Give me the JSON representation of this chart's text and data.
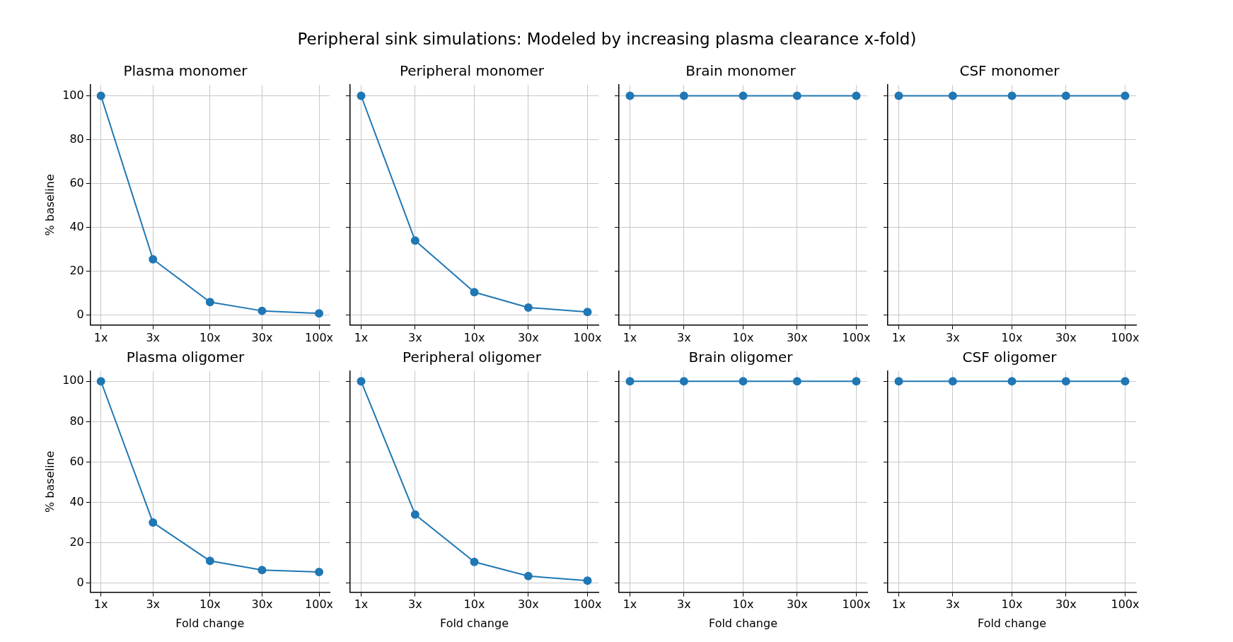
{
  "chart_data": [
    {
      "type": "other",
      "title": "Peripheral sink simulations: Modeled by increasing plasma clearance x-fold)"
    },
    {
      "type": "line",
      "title": "Plasma monomer",
      "ylabel": "% baseline",
      "x": [
        1,
        3,
        10,
        30,
        100
      ],
      "series": [
        {
          "color": "#1f77b4",
          "values": [
            100,
            25.5,
            6,
            2,
            0.8
          ]
        }
      ],
      "log": "x",
      "xlim": [
        0.8,
        125
      ],
      "ylim": [
        -4.5,
        105
      ],
      "xticks": [
        {
          "value": 1,
          "label": "1x"
        },
        {
          "value": 3,
          "label": "3x"
        },
        {
          "value": 10,
          "label": "10x"
        },
        {
          "value": 30,
          "label": "30x"
        },
        {
          "value": 100,
          "label": "100x"
        }
      ],
      "yticks": [
        0,
        20,
        40,
        60,
        80,
        100
      ],
      "grid": true,
      "marker": "circle",
      "line_style": "solid"
    },
    {
      "type": "line",
      "title": "Peripheral monomer",
      "x": [
        1,
        3,
        10,
        30,
        100
      ],
      "series": [
        {
          "color": "#1f77b4",
          "values": [
            100,
            34,
            10.5,
            3.5,
            1.5
          ]
        }
      ],
      "log": "x",
      "xlim": [
        0.8,
        125
      ],
      "ylim": [
        -4.5,
        105
      ],
      "xticks": [
        {
          "value": 1,
          "label": "1x"
        },
        {
          "value": 3,
          "label": "3x"
        },
        {
          "value": 10,
          "label": "10x"
        },
        {
          "value": 30,
          "label": "30x"
        },
        {
          "value": 100,
          "label": "100x"
        }
      ],
      "yticks": [
        0,
        20,
        40,
        60,
        80,
        100
      ],
      "tick_labels": "x",
      "grid": true,
      "marker": "circle",
      "line_style": "solid"
    },
    {
      "type": "line",
      "title": "Brain monomer",
      "x": [
        1,
        3,
        10,
        30,
        100
      ],
      "series": [
        {
          "color": "#1f77b4",
          "values": [
            100,
            100,
            100,
            100,
            100
          ]
        }
      ],
      "log": "x",
      "xlim": [
        0.8,
        125
      ],
      "ylim": [
        -4.5,
        105
      ],
      "xticks": [
        {
          "value": 1,
          "label": "1x"
        },
        {
          "value": 3,
          "label": "3x"
        },
        {
          "value": 10,
          "label": "10x"
        },
        {
          "value": 30,
          "label": "30x"
        },
        {
          "value": 100,
          "label": "100x"
        }
      ],
      "yticks": [
        0,
        20,
        40,
        60,
        80,
        100
      ],
      "tick_labels": "x",
      "grid": true,
      "marker": "circle",
      "line_style": "solid"
    },
    {
      "type": "line",
      "title": "CSF monomer",
      "x": [
        1,
        3,
        10,
        30,
        100
      ],
      "series": [
        {
          "color": "#1f77b4",
          "values": [
            100,
            100,
            100,
            100,
            100
          ]
        }
      ],
      "log": "x",
      "xlim": [
        0.8,
        125
      ],
      "ylim": [
        -4.5,
        105
      ],
      "xticks": [
        {
          "value": 1,
          "label": "1x"
        },
        {
          "value": 3,
          "label": "3x"
        },
        {
          "value": 10,
          "label": "10x"
        },
        {
          "value": 30,
          "label": "30x"
        },
        {
          "value": 100,
          "label": "100x"
        }
      ],
      "yticks": [
        0,
        20,
        40,
        60,
        80,
        100
      ],
      "tick_labels": "x",
      "grid": true,
      "marker": "circle",
      "line_style": "solid"
    },
    {
      "type": "line",
      "title": "Plasma oligomer",
      "ylabel": "% baseline",
      "xlabel": "Fold change",
      "x": [
        1,
        3,
        10,
        30,
        100
      ],
      "series": [
        {
          "color": "#1f77b4",
          "values": [
            100,
            30,
            11,
            6.5,
            5.5
          ]
        }
      ],
      "log": "x",
      "xlim": [
        0.8,
        125
      ],
      "ylim": [
        -4.5,
        105
      ],
      "xticks": [
        {
          "value": 1,
          "label": "1x"
        },
        {
          "value": 3,
          "label": "3x"
        },
        {
          "value": 10,
          "label": "10x"
        },
        {
          "value": 30,
          "label": "30x"
        },
        {
          "value": 100,
          "label": "100x"
        }
      ],
      "yticks": [
        0,
        20,
        40,
        60,
        80,
        100
      ],
      "grid": true,
      "marker": "circle",
      "line_style": "solid"
    },
    {
      "type": "line",
      "title": "Peripheral oligomer",
      "xlabel": "Fold change",
      "x": [
        1,
        3,
        10,
        30,
        100
      ],
      "series": [
        {
          "color": "#1f77b4",
          "values": [
            100,
            34,
            10.5,
            3.5,
            1.2
          ]
        }
      ],
      "log": "x",
      "xlim": [
        0.8,
        125
      ],
      "ylim": [
        -4.5,
        105
      ],
      "xticks": [
        {
          "value": 1,
          "label": "1x"
        },
        {
          "value": 3,
          "label": "3x"
        },
        {
          "value": 10,
          "label": "10x"
        },
        {
          "value": 30,
          "label": "30x"
        },
        {
          "value": 100,
          "label": "100x"
        }
      ],
      "yticks": [
        0,
        20,
        40,
        60,
        80,
        100
      ],
      "tick_labels": "x",
      "grid": true,
      "marker": "circle",
      "line_style": "solid"
    },
    {
      "type": "line",
      "title": "Brain oligomer",
      "xlabel": "Fold change",
      "x": [
        1,
        3,
        10,
        30,
        100
      ],
      "series": [
        {
          "color": "#1f77b4",
          "values": [
            100,
            100,
            100,
            100,
            100
          ]
        }
      ],
      "log": "x",
      "xlim": [
        0.8,
        125
      ],
      "ylim": [
        -4.5,
        105
      ],
      "xticks": [
        {
          "value": 1,
          "label": "1x"
        },
        {
          "value": 3,
          "label": "3x"
        },
        {
          "value": 10,
          "label": "10x"
        },
        {
          "value": 30,
          "label": "30x"
        },
        {
          "value": 100,
          "label": "100x"
        }
      ],
      "yticks": [
        0,
        20,
        40,
        60,
        80,
        100
      ],
      "tick_labels": "x",
      "grid": true,
      "marker": "circle",
      "line_style": "solid"
    },
    {
      "type": "line",
      "title": "CSF oligomer",
      "xlabel": "Fold change",
      "x": [
        1,
        3,
        10,
        30,
        100
      ],
      "series": [
        {
          "color": "#1f77b4",
          "values": [
            100,
            100,
            100,
            100,
            100
          ]
        }
      ],
      "log": "x",
      "xlim": [
        0.8,
        125
      ],
      "ylim": [
        -4.5,
        105
      ],
      "xticks": [
        {
          "value": 1,
          "label": "1x"
        },
        {
          "value": 3,
          "label": "3x"
        },
        {
          "value": 10,
          "label": "10x"
        },
        {
          "value": 30,
          "label": "30x"
        },
        {
          "value": 100,
          "label": "100x"
        }
      ],
      "yticks": [
        0,
        20,
        40,
        60,
        80,
        100
      ],
      "tick_labels": "x",
      "grid": true,
      "marker": "circle",
      "line_style": "solid"
    }
  ]
}
